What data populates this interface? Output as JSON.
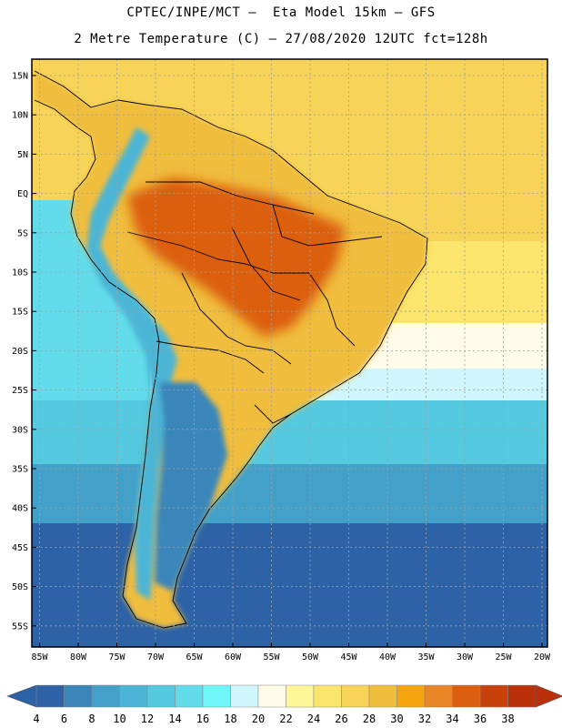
{
  "title": {
    "line1": "CPTEC/INPE/MCT –  Eta Model 15km – GFS",
    "line2": "2 Metre Temperature (C) – 27/08/2020 12UTC fct=128h"
  },
  "axes": {
    "lat_labels": [
      "15N",
      "10N",
      "5N",
      "EQ",
      "5S",
      "10S",
      "15S",
      "20S",
      "25S",
      "30S",
      "35S",
      "40S",
      "45S",
      "50S",
      "55S"
    ],
    "lon_labels": [
      "85W",
      "80W",
      "75W",
      "70W",
      "65W",
      "60W",
      "55W",
      "50W",
      "45W",
      "40W",
      "35W",
      "30W",
      "25W",
      "20W"
    ]
  },
  "colorbar": {
    "levels": [
      "4",
      "6",
      "8",
      "10",
      "12",
      "14",
      "16",
      "18",
      "20",
      "22",
      "24",
      "26",
      "28",
      "30",
      "32",
      "34",
      "36",
      "38"
    ],
    "colors": [
      "#2d63a6",
      "#3a86bb",
      "#43a1c9",
      "#4cb5d6",
      "#54c9df",
      "#62dcea",
      "#6ff6f8",
      "#d0f7fd",
      "#fffbe9",
      "#fff79a",
      "#fbe56c",
      "#f7d458",
      "#f0bd3d",
      "#f5a60e",
      "#e98627",
      "#dc5e11",
      "#c7420a",
      "#b9300a"
    ],
    "low_color": "#2d63a6",
    "high_color": "#b9300a"
  },
  "map_colors": {
    "ocean_south_deep": "#2d63a6",
    "ocean_south": "#43a1c9",
    "ocean_mid": "#54c9df",
    "ocean_cool": "#62dcea",
    "ocean_light": "#d0f7fd",
    "ocean_pale": "#fffbe9",
    "ocean_warm": "#fbe56c",
    "ocean_tropic": "#f7d458",
    "land_hot": "#dc5e11",
    "land_warm": "#f0bd3d",
    "andes": "#4cb5d6",
    "patagonia": "#3a86bb"
  }
}
